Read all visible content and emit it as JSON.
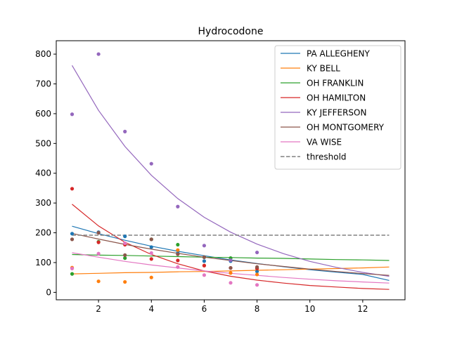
{
  "chart_data": {
    "type": "scatter",
    "title": "Hydrocodone",
    "xlabel": "",
    "ylabel": "",
    "xlim": [
      0.4,
      13.6
    ],
    "ylim": [
      -25,
      845
    ],
    "xticks": [
      2,
      4,
      6,
      8,
      10,
      12
    ],
    "yticks": [
      0,
      100,
      200,
      300,
      400,
      500,
      600,
      700,
      800
    ],
    "grid": false,
    "legend_position": "top-right",
    "series": [
      {
        "name": "PA ALLEGHENY",
        "color": "#1f77b4",
        "x": [
          1,
          2,
          3,
          4,
          5,
          6,
          7,
          8
        ],
        "y": [
          197,
          202,
          188,
          152,
          132,
          105,
          105,
          70
        ],
        "fit": {
          "x": [
            1,
            2,
            3,
            4,
            5,
            6,
            7,
            8,
            9,
            10,
            11,
            12,
            13
          ],
          "y": [
            222,
            197,
            175,
            155,
            138,
            123,
            109,
            97,
            86,
            76,
            68,
            60,
            40
          ]
        }
      },
      {
        "name": "KY BELL",
        "color": "#ff7f0e",
        "x": [
          1,
          2,
          3,
          4,
          5,
          6,
          7,
          8
        ],
        "y": [
          83,
          37,
          35,
          50,
          142,
          90,
          65,
          60
        ],
        "fit": {
          "x": [
            1,
            2,
            3,
            4,
            5,
            6,
            7,
            8,
            9,
            10,
            11,
            12,
            13
          ],
          "y": [
            62,
            64,
            66,
            67,
            69,
            70,
            72,
            74,
            76,
            78,
            80,
            82,
            85
          ]
        }
      },
      {
        "name": "OH FRANKLIN",
        "color": "#2ca02c",
        "x": [
          1,
          2,
          3,
          4,
          5,
          6,
          7,
          8
        ],
        "y": [
          62,
          170,
          115,
          178,
          160,
          118,
          115,
          80
        ],
        "fit": {
          "x": [
            1,
            2,
            3,
            4,
            5,
            6,
            7,
            8,
            9,
            10,
            11,
            12,
            13
          ],
          "y": [
            127,
            125,
            124,
            122,
            120,
            118,
            117,
            115,
            114,
            112,
            110,
            109,
            107
          ]
        }
      },
      {
        "name": "OH HAMILTON",
        "color": "#d62728",
        "x": [
          1,
          2,
          3,
          4,
          5,
          6,
          7,
          8
        ],
        "y": [
          348,
          168,
          160,
          112,
          107,
          90,
          82,
          80
        ],
        "fit": {
          "x": [
            1,
            2,
            3,
            4,
            5,
            6,
            7,
            8,
            9,
            10,
            11,
            12,
            13
          ],
          "y": [
            296,
            223,
            168,
            127,
            96,
            72,
            54,
            41,
            31,
            23,
            18,
            13,
            10
          ]
        }
      },
      {
        "name": "KY JEFFERSON",
        "color": "#9467bd",
        "x": [
          1,
          2,
          3,
          4,
          5,
          6,
          7,
          8
        ],
        "y": [
          598,
          800,
          540,
          432,
          288,
          157,
          108,
          134
        ],
        "fit": {
          "x": [
            1,
            2,
            3,
            4,
            5,
            6,
            7,
            8,
            9,
            10,
            11,
            12,
            13
          ],
          "y": [
            762,
            611,
            490,
            393,
            315,
            252,
            202,
            162,
            130,
            104,
            84,
            67,
            54
          ]
        }
      },
      {
        "name": "OH MONTGOMERY",
        "color": "#8c564b",
        "x": [
          1,
          2,
          3,
          4,
          5,
          6,
          7,
          8
        ],
        "y": [
          178,
          200,
          125,
          178,
          128,
          118,
          82,
          85
        ],
        "fit": {
          "x": [
            1,
            2,
            3,
            4,
            5,
            6,
            7,
            8,
            9,
            10,
            11,
            12,
            13
          ],
          "y": [
            198,
            179,
            161,
            145,
            131,
            118,
            107,
            96,
            87,
            78,
            70,
            63,
            57
          ]
        }
      },
      {
        "name": "VA WISE",
        "color": "#e377c2",
        "x": [
          1,
          2,
          3,
          4,
          5,
          6,
          7,
          8
        ],
        "y": [
          80,
          130,
          165,
          132,
          85,
          58,
          32,
          25
        ],
        "fit": {
          "x": [
            1,
            2,
            3,
            4,
            5,
            6,
            7,
            8,
            9,
            10,
            11,
            12,
            13
          ],
          "y": [
            133,
            118,
            104,
            92,
            82,
            72,
            64,
            57,
            50,
            44,
            39,
            35,
            31
          ]
        }
      }
    ],
    "threshold": {
      "name": "threshold",
      "color": "#808080",
      "value": 192,
      "x_range": [
        1,
        13
      ]
    }
  }
}
